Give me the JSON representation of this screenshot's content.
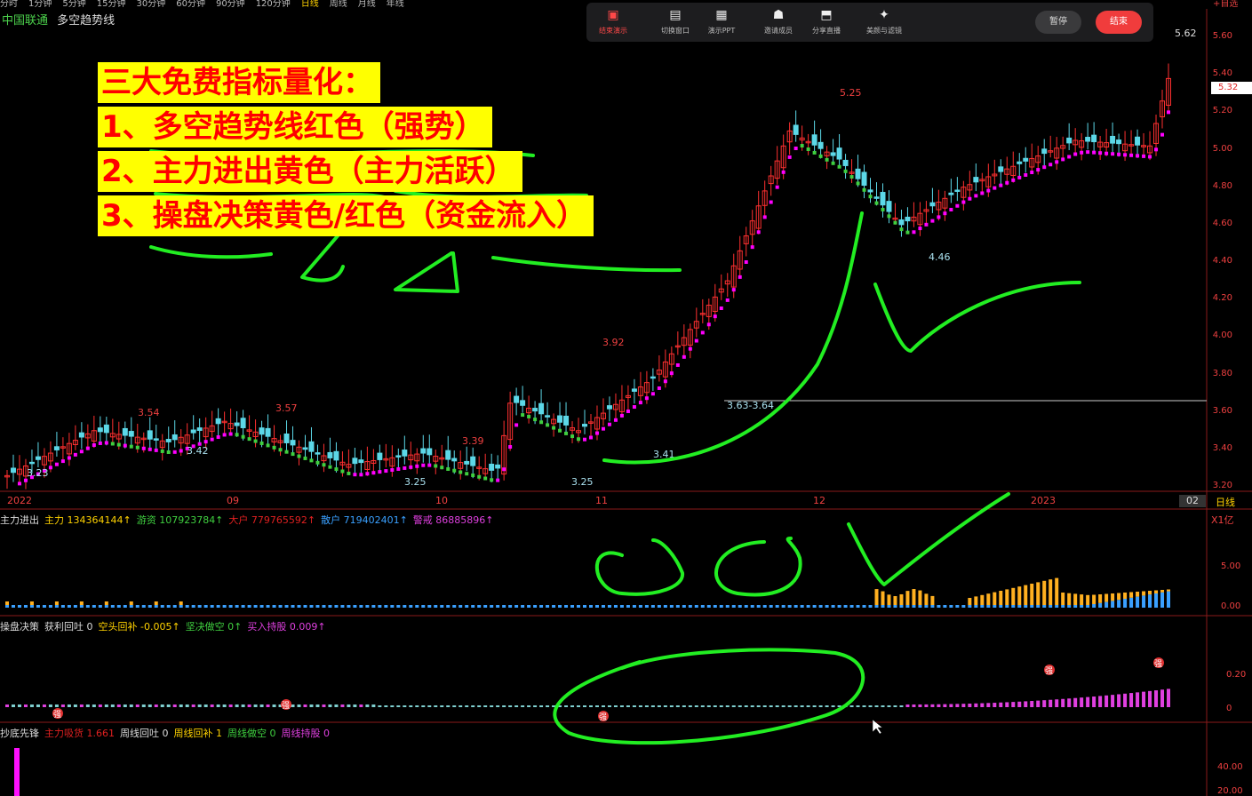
{
  "topbar": {
    "items": [
      "分时",
      "1分钟",
      "5分钟",
      "15分钟",
      "30分钟",
      "60分钟",
      "90分钟",
      "120分钟",
      "日线",
      "周线",
      "月线",
      "年线"
    ],
    "active": "日线",
    "right_label": "+自选"
  },
  "title": {
    "stock": "中国联通",
    "indicator": "多空趋势线"
  },
  "toolbar": {
    "items": [
      {
        "icon": "screen-icon",
        "label": "结束演示",
        "stop": true
      },
      {
        "icon": "window-icon",
        "label": "切换窗口"
      },
      {
        "icon": "ppt-icon",
        "label": "演示PPT"
      },
      {
        "icon": "user-icon",
        "label": "邀请成员"
      },
      {
        "icon": "share-icon",
        "label": "分享直播"
      },
      {
        "icon": "sparkle-icon",
        "label": "美颜与滤镜"
      }
    ],
    "pause": "暂停",
    "end": "结束"
  },
  "headline": {
    "title": "三大免费指标量化：",
    "lines": [
      "1、多空趋势线红色（强势）",
      "2、主力进出黄色（主力活跃）",
      "3、操盘决策黄色/红色（资金流入）"
    ]
  },
  "price_axis": [
    "5.60",
    "5.40",
    "5.20",
    "5.00",
    "4.80",
    "4.60",
    "4.40",
    "4.20",
    "4.00",
    "3.80",
    "3.60",
    "3.40",
    "3.20"
  ],
  "price_tag": "5.32",
  "period": "日线",
  "period_count": "02",
  "price_annotations": [
    {
      "text": "3.23",
      "color": "#a9e0ee"
    },
    {
      "text": "3.54",
      "color": "#ee4040"
    },
    {
      "text": "3.42",
      "color": "#a9e0ee"
    },
    {
      "text": "3.57",
      "color": "#ee4040"
    },
    {
      "text": "3.25",
      "color": "#a9e0ee"
    },
    {
      "text": "3.39",
      "color": "#ee4040"
    },
    {
      "text": "3.25",
      "color": "#a9e0ee"
    },
    {
      "text": "3.92",
      "color": "#ee4040"
    },
    {
      "text": "3.41",
      "color": "#a9e0ee"
    },
    {
      "text": "3.63-3.64",
      "color": "#a9e0ee"
    },
    {
      "text": "5.25",
      "color": "#ee4040"
    },
    {
      "text": "4.46",
      "color": "#a9e0ee"
    },
    {
      "text": "5.62",
      "color": "#dddddd"
    }
  ],
  "x_axis": [
    "2022",
    "09",
    "10",
    "11",
    "12",
    "2023"
  ],
  "panel2": {
    "name": "主力进出",
    "items": [
      {
        "label": "主力",
        "value": "134364144↑",
        "color": "#ffd200"
      },
      {
        "label": "游资",
        "value": "107923784↑",
        "color": "#3fcf3f"
      },
      {
        "label": "大户",
        "value": "779765592↑",
        "color": "#e02020"
      },
      {
        "label": "散户",
        "value": "719402401↑",
        "color": "#3aa0ff"
      },
      {
        "label": "警戒",
        "value": "86885896↑",
        "color": "#e040e0"
      }
    ],
    "unit": "X1亿",
    "axis": [
      "5.00",
      "0.00"
    ]
  },
  "panel3": {
    "name": "操盘决策",
    "items": [
      {
        "label": "获利回吐",
        "value": "0",
        "color": "#dddddd"
      },
      {
        "label": "空头回补",
        "value": "-0.005↑",
        "color": "#ffd200"
      },
      {
        "label": "坚决做空",
        "value": "0↑",
        "color": "#3fcf3f"
      },
      {
        "label": "买入持股",
        "value": "0.009↑",
        "color": "#e040e0"
      }
    ],
    "axis": [
      "0.20",
      "0"
    ],
    "markers": [
      "强",
      "强",
      "强",
      "强",
      "强"
    ]
  },
  "panel4": {
    "name": "抄底先锋",
    "items": [
      {
        "label": "主力吸货",
        "value": "1.661",
        "color": "#e02020"
      },
      {
        "label": "周线回吐",
        "value": "0",
        "color": "#dddddd"
      },
      {
        "label": "周线回补",
        "value": "1",
        "color": "#ffd200"
      },
      {
        "label": "周线做空",
        "value": "0",
        "color": "#3fcf3f"
      },
      {
        "label": "周线持股",
        "value": "0",
        "color": "#e040e0"
      }
    ],
    "axis": [
      "40.00",
      "20.00"
    ]
  },
  "colors": {
    "up": "#ff3030",
    "down": "#5cd8e8",
    "trend_strong": "#ff00ff",
    "trend_weak": "#3fcf3f",
    "annotation": "#22ee22"
  }
}
